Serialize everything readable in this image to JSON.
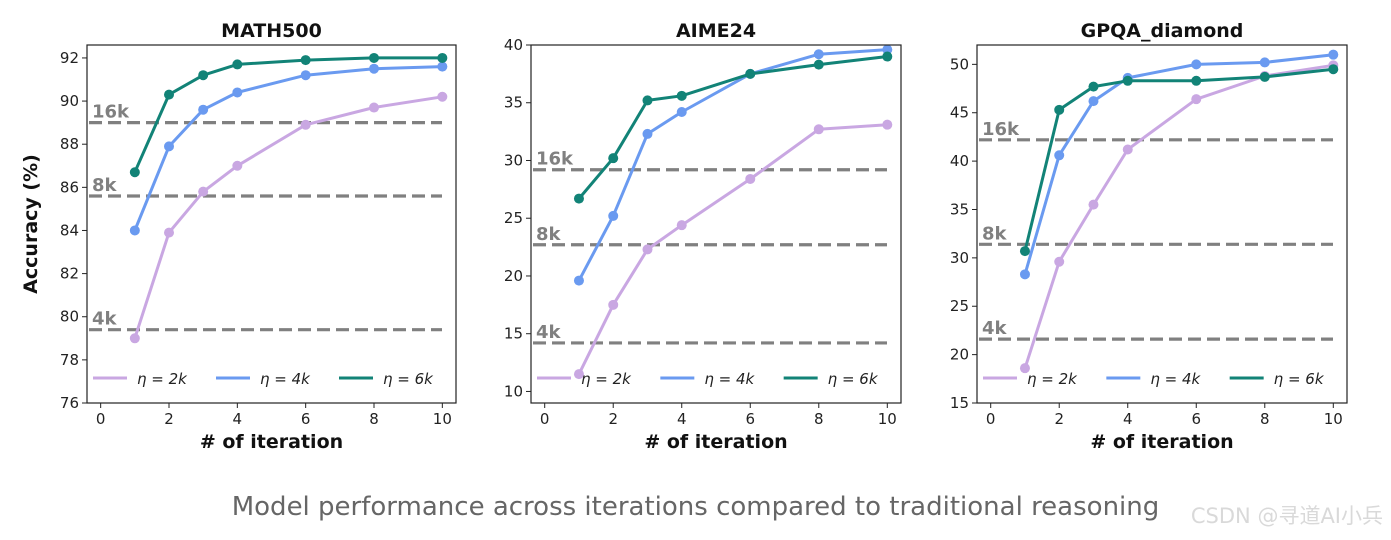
{
  "caption": "Model performance across iterations compared to traditional reasoning",
  "watermark": "CSDN @寻道AI小兵",
  "colors": {
    "eta_2k": "#c9a7e2",
    "eta_4k": "#6a9af0",
    "eta_6k": "#128377",
    "baseline": "#808080"
  },
  "chart_data": [
    {
      "type": "line",
      "title": "MATH500",
      "xlabel": "# of iteration",
      "ylabel": "Accuracy (%)",
      "xlim": [
        -0.4,
        10.4
      ],
      "ylim": [
        76,
        92.6
      ],
      "xticks": [
        0,
        2,
        4,
        6,
        8,
        10
      ],
      "yticks": [
        76,
        78,
        80,
        82,
        84,
        86,
        88,
        90,
        92
      ],
      "x": [
        1,
        2,
        3,
        4,
        6,
        8,
        10
      ],
      "series": [
        {
          "name": "η = 2k",
          "key": "eta_2k",
          "values": [
            79.0,
            83.9,
            85.8,
            87.0,
            88.9,
            89.7,
            90.2
          ]
        },
        {
          "name": "η = 4k",
          "key": "eta_4k",
          "values": [
            84.0,
            87.9,
            89.6,
            90.4,
            91.2,
            91.5,
            91.6
          ]
        },
        {
          "name": "η = 6k",
          "key": "eta_6k",
          "values": [
            86.7,
            90.3,
            91.2,
            91.7,
            91.9,
            92.0,
            92.0
          ]
        }
      ],
      "baselines": [
        {
          "label": "16k",
          "value": 89.0
        },
        {
          "label": "8k",
          "value": 85.6
        },
        {
          "label": "4k",
          "value": 79.4
        }
      ],
      "legend": "bottom"
    },
    {
      "type": "line",
      "title": "AIME24",
      "xlabel": "# of iteration",
      "ylabel": "",
      "xlim": [
        -0.4,
        10.4
      ],
      "ylim": [
        9,
        40
      ],
      "xticks": [
        0,
        2,
        4,
        6,
        8,
        10
      ],
      "yticks": [
        10,
        15,
        20,
        25,
        30,
        35,
        40
      ],
      "x": [
        1,
        2,
        3,
        4,
        6,
        8,
        10
      ],
      "series": [
        {
          "name": "η = 2k",
          "key": "eta_2k",
          "values": [
            11.5,
            17.5,
            22.3,
            24.4,
            28.4,
            32.7,
            33.1
          ]
        },
        {
          "name": "η = 4k",
          "key": "eta_4k",
          "values": [
            19.6,
            25.2,
            32.3,
            34.2,
            37.5,
            39.2,
            39.6
          ]
        },
        {
          "name": "η = 6k",
          "key": "eta_6k",
          "values": [
            26.7,
            30.2,
            35.2,
            35.6,
            37.5,
            38.3,
            39.0
          ]
        }
      ],
      "baselines": [
        {
          "label": "16k",
          "value": 29.2
        },
        {
          "label": "8k",
          "value": 22.7
        },
        {
          "label": "4k",
          "value": 14.2
        }
      ],
      "legend": "bottom"
    },
    {
      "type": "line",
      "title": "GPQA_diamond",
      "xlabel": "# of iteration",
      "ylabel": "",
      "xlim": [
        -0.4,
        10.4
      ],
      "ylim": [
        15,
        52
      ],
      "xticks": [
        0,
        2,
        4,
        6,
        8,
        10
      ],
      "yticks": [
        15,
        20,
        25,
        30,
        35,
        40,
        45,
        50
      ],
      "x": [
        1,
        2,
        3,
        4,
        6,
        8,
        10
      ],
      "series": [
        {
          "name": "η = 2k",
          "key": "eta_2k",
          "values": [
            18.6,
            29.6,
            35.5,
            41.2,
            46.4,
            48.8,
            49.9
          ]
        },
        {
          "name": "η = 4k",
          "key": "eta_4k",
          "values": [
            28.3,
            40.6,
            46.2,
            48.6,
            50.0,
            50.2,
            51.0
          ]
        },
        {
          "name": "η = 6k",
          "key": "eta_6k",
          "values": [
            30.7,
            45.3,
            47.7,
            48.3,
            48.3,
            48.7,
            49.5
          ]
        }
      ],
      "baselines": [
        {
          "label": "16k",
          "value": 42.2
        },
        {
          "label": "8k",
          "value": 31.4
        },
        {
          "label": "4k",
          "value": 21.6
        }
      ],
      "legend": "bottom"
    }
  ]
}
